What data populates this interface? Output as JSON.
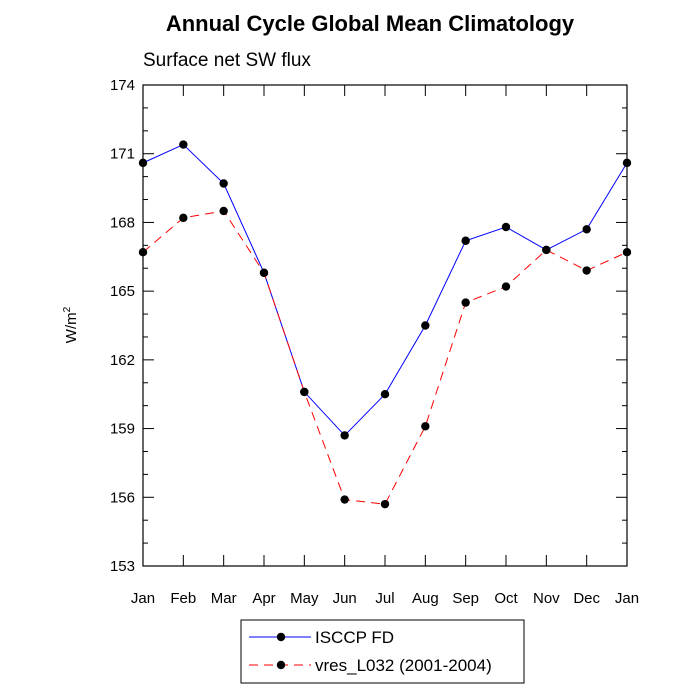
{
  "chart_data": {
    "type": "line",
    "title": "Annual Cycle Global Mean Climatology",
    "subtitle": "Surface net SW flux",
    "ylabel": "W/m",
    "ylabel_sup": "2",
    "xlabel": "",
    "categories": [
      "Jan",
      "Feb",
      "Mar",
      "Apr",
      "May",
      "Jun",
      "Jul",
      "Aug",
      "Sep",
      "Oct",
      "Nov",
      "Dec",
      "Jan"
    ],
    "ylim": [
      153,
      174
    ],
    "yticks": [
      153,
      156,
      159,
      162,
      165,
      168,
      171,
      174
    ],
    "series": [
      {
        "name": "ISCCP FD",
        "color": "#0000ff",
        "dash": "solid",
        "values": [
          170.6,
          171.4,
          169.7,
          165.8,
          160.6,
          158.7,
          160.5,
          163.5,
          167.2,
          167.8,
          166.8,
          167.7,
          170.6
        ]
      },
      {
        "name": "vres_L032 (2001-2004)",
        "color": "#ff0000",
        "dash": "dashed",
        "values": [
          166.7,
          168.2,
          168.5,
          165.8,
          160.6,
          155.9,
          155.7,
          159.1,
          164.5,
          165.2,
          166.8,
          165.9,
          166.7
        ]
      }
    ],
    "legend_position": "bottom-center"
  }
}
